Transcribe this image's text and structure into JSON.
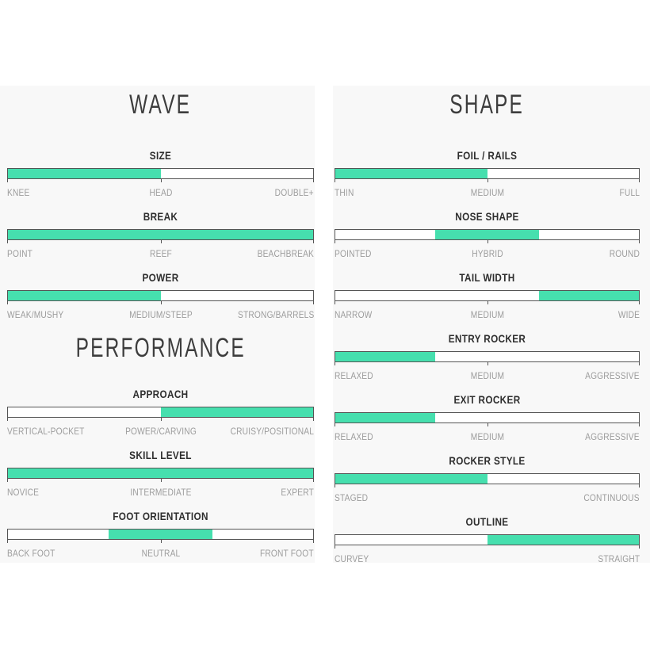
{
  "page": {
    "background": "#ffffff",
    "panel_background": "#f8f8f8"
  },
  "colors": {
    "fill": "#46dfae",
    "track": "#ffffff",
    "border": "#555555",
    "heading": "#3d3d3d",
    "slider_name": "#2e2e2e",
    "scale_label": "#9c9c9c"
  },
  "chart_data": {
    "type": "bar",
    "subtype": "range-slider-infographic",
    "legend_position": "none",
    "grid": false,
    "value_scale_pct": [
      0,
      100
    ],
    "columns": [
      {
        "blocks": [
          {
            "type": "title",
            "text": "WAVE"
          },
          {
            "type": "slider",
            "name": "SIZE",
            "labels": [
              "KNEE",
              "HEAD",
              "DOUBLE+"
            ],
            "fill_start_pct": 0,
            "fill_end_pct": 50
          },
          {
            "type": "slider",
            "name": "BREAK",
            "labels": [
              "POINT",
              "REEF",
              "BEACHBREAK"
            ],
            "fill_start_pct": 0,
            "fill_end_pct": 100
          },
          {
            "type": "slider",
            "name": "POWER",
            "labels": [
              "WEAK/MUSHY",
              "MEDIUM/STEEP",
              "STRONG/BARRELS"
            ],
            "fill_start_pct": 0,
            "fill_end_pct": 50
          },
          {
            "type": "title",
            "text": "PERFORMANCE"
          },
          {
            "type": "slider",
            "name": "APPROACH",
            "labels": [
              "VERTICAL-POCKET",
              "POWER/CARVING",
              "CRUISY/POSITIONAL"
            ],
            "fill_start_pct": 50,
            "fill_end_pct": 100
          },
          {
            "type": "slider",
            "name": "SKILL LEVEL",
            "labels": [
              "NOVICE",
              "INTERMEDIATE",
              "EXPERT"
            ],
            "fill_start_pct": 0,
            "fill_end_pct": 100
          },
          {
            "type": "slider",
            "name": "FOOT ORIENTATION",
            "labels": [
              "BACK FOOT",
              "NEUTRAL",
              "FRONT FOOT"
            ],
            "fill_start_pct": 33,
            "fill_end_pct": 67
          }
        ]
      },
      {
        "blocks": [
          {
            "type": "title",
            "text": "SHAPE"
          },
          {
            "type": "slider",
            "name": "FOIL / RAILS",
            "labels": [
              "THIN",
              "MEDIUM",
              "FULL"
            ],
            "fill_start_pct": 0,
            "fill_end_pct": 50
          },
          {
            "type": "slider",
            "name": "NOSE SHAPE",
            "labels": [
              "POINTED",
              "HYBRID",
              "ROUND"
            ],
            "fill_start_pct": 33,
            "fill_end_pct": 67
          },
          {
            "type": "slider",
            "name": "TAIL WIDTH",
            "labels": [
              "NARROW",
              "MEDIUM",
              "WIDE"
            ],
            "fill_start_pct": 67,
            "fill_end_pct": 100
          },
          {
            "type": "slider",
            "name": "ENTRY ROCKER",
            "labels": [
              "RELAXED",
              "MEDIUM",
              "AGGRESSIVE"
            ],
            "fill_start_pct": 0,
            "fill_end_pct": 33
          },
          {
            "type": "slider",
            "name": "EXIT ROCKER",
            "labels": [
              "RELAXED",
              "MEDIUM",
              "AGGRESSIVE"
            ],
            "fill_start_pct": 0,
            "fill_end_pct": 33
          },
          {
            "type": "slider",
            "name": "ROCKER STYLE",
            "labels": [
              "STAGED",
              "CONTINUOUS"
            ],
            "fill_start_pct": 0,
            "fill_end_pct": 50
          },
          {
            "type": "slider",
            "name": "OUTLINE",
            "labels": [
              "CURVEY",
              "STRAIGHT"
            ],
            "fill_start_pct": 50,
            "fill_end_pct": 100
          }
        ]
      }
    ]
  }
}
